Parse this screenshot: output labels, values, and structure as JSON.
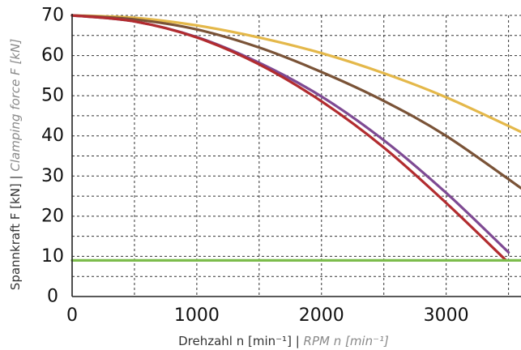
{
  "chart_data": {
    "type": "line",
    "xlabel": {
      "de": "Drehzahl n [min⁻¹]",
      "sep": " | ",
      "en": "RPM n [min⁻¹]"
    },
    "ylabel": {
      "de": "Spannkraft F [kN]",
      "sep": " | ",
      "en": "Clamping force F [kN]"
    },
    "xlim": [
      0,
      3600
    ],
    "ylim": [
      0,
      70
    ],
    "xticks": [
      0,
      1000,
      2000,
      3000
    ],
    "yticks": [
      0,
      10,
      20,
      30,
      40,
      50,
      60,
      70
    ],
    "grid": true,
    "series": [
      {
        "color": "#e4b84a",
        "x": [
          0,
          500,
          1000,
          1500,
          2000,
          2500,
          3000,
          3600
        ],
        "y": [
          70,
          69.4,
          67.5,
          64.5,
          60.6,
          55.6,
          49.6,
          41.0
        ]
      },
      {
        "color": "#7a5337",
        "x": [
          0,
          500,
          1000,
          1500,
          2000,
          2500,
          3000,
          3600
        ],
        "y": [
          70,
          69.0,
          66.5,
          62.0,
          55.9,
          48.7,
          40.0,
          27.0
        ]
      },
      {
        "color": "#7e4a93",
        "x": [
          0,
          500,
          1000,
          1500,
          2000,
          2500,
          3000,
          3500
        ],
        "y": [
          70,
          68.5,
          64.6,
          58.2,
          49.8,
          38.9,
          25.8,
          11.0
        ]
      },
      {
        "color": "#b22c2f",
        "x": [
          0,
          500,
          1000,
          1500,
          2000,
          2500,
          3000,
          3480
        ],
        "y": [
          70,
          68.5,
          64.5,
          57.8,
          48.6,
          37.1,
          23.3,
          9.0
        ]
      },
      {
        "color": "#7cbc4c",
        "x": [
          0,
          3600
        ],
        "y": [
          9.0,
          9.0
        ]
      }
    ]
  }
}
